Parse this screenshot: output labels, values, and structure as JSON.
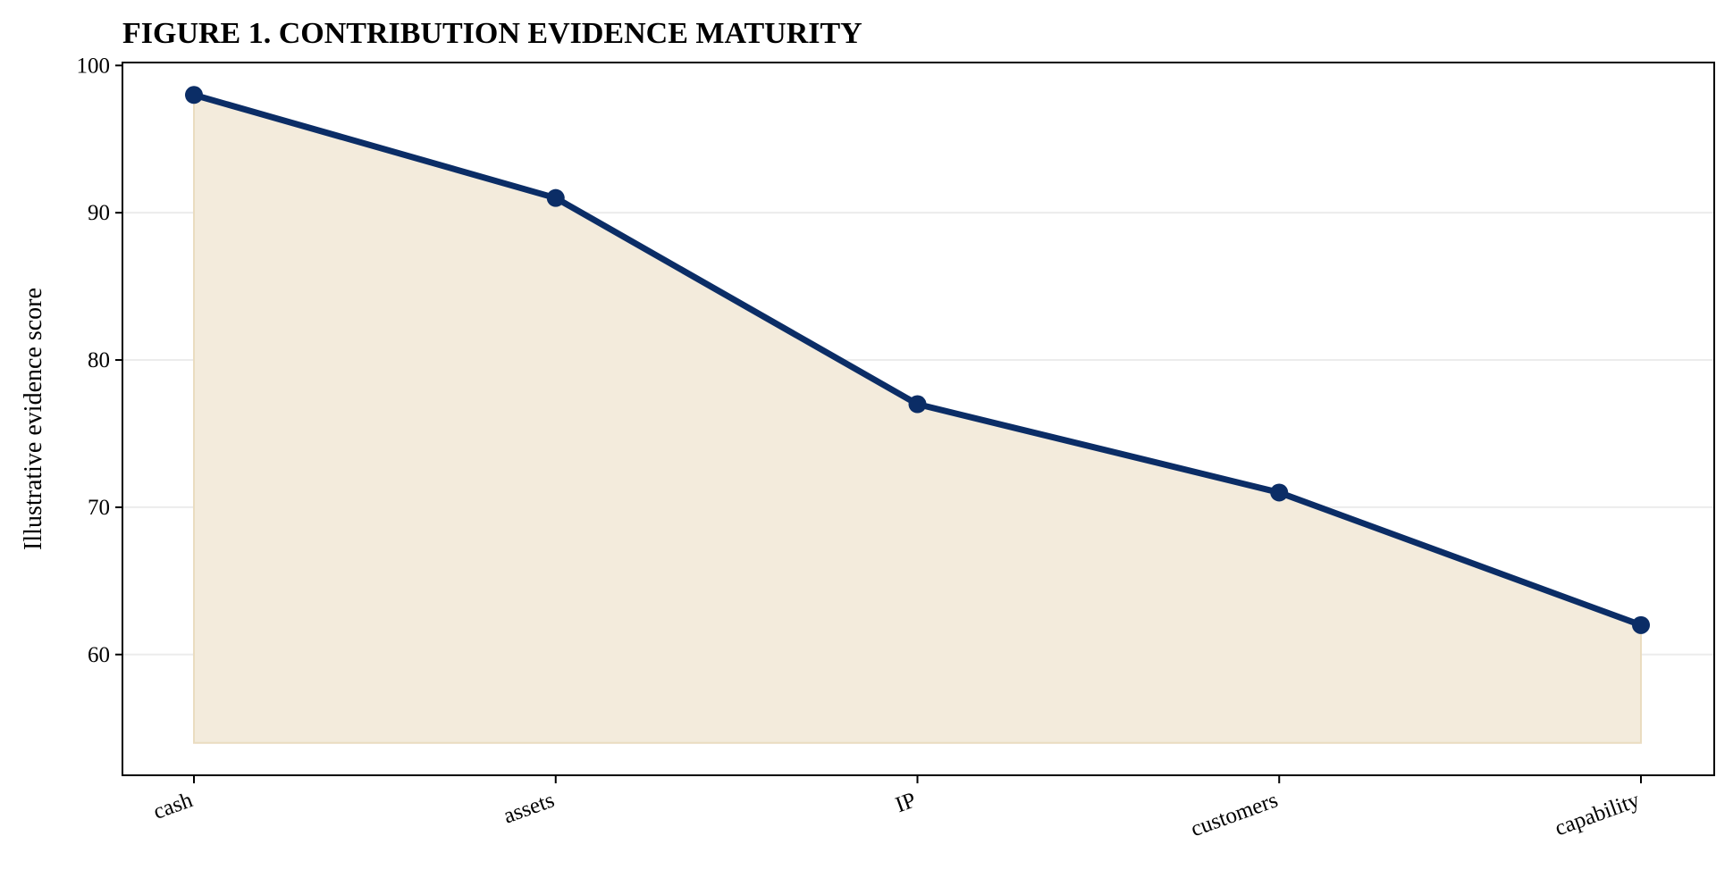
{
  "chart_data": {
    "type": "line",
    "title": "FIGURE 1. CONTRIBUTION EVIDENCE MATURITY",
    "xlabel": "",
    "ylabel": "Illustrative evidence score",
    "categories": [
      "cash",
      "assets",
      "IP",
      "customers",
      "capability"
    ],
    "series": [
      {
        "values": [
          98,
          91,
          77,
          71,
          62
        ]
      }
    ],
    "ylim": [
      51.8,
      100.2
    ],
    "yticks": [
      60,
      70,
      80,
      90,
      100
    ],
    "fill_baseline": 54,
    "grid": "horizontal",
    "legend": "none",
    "colors": {
      "line": "#0b2d66",
      "marker": "#0b2d66",
      "fill": "#f3ebdc",
      "fill_edge": "#eadcc0",
      "grid": "#ececec",
      "axis": "#000000"
    }
  }
}
